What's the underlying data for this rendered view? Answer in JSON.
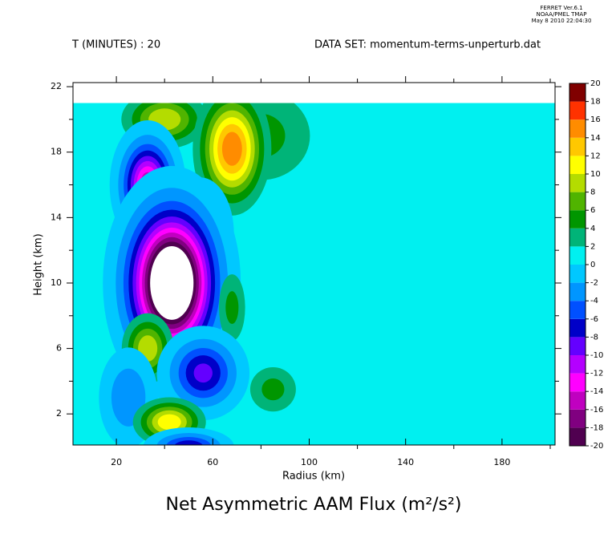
{
  "chart_data": {
    "type": "contour",
    "title": "Net Asymmetric AAM Flux (m²/s²)",
    "header_left": "T (MINUTES) : 20",
    "header_right": "DATA SET: momentum-terms-unperturb.dat",
    "stamp": [
      "FERRET Ver.6.1",
      "NOAA/PMEL TMAP",
      "May  8 2010 22:04:30"
    ],
    "xlabel": "Radius (km)",
    "ylabel": "Height (km)",
    "xlim": [
      2,
      202
    ],
    "ylim": [
      0.1,
      22.25
    ],
    "field_top": 21,
    "xticks": [
      20,
      60,
      100,
      140,
      180
    ],
    "xminor": [
      40,
      80,
      120,
      160,
      200
    ],
    "yticks": [
      2,
      6,
      10,
      14,
      18,
      22
    ],
    "yminor": [
      4,
      8,
      12,
      16,
      20
    ],
    "levels": [
      -20,
      -18,
      -16,
      -14,
      -12,
      -10,
      -8,
      -6,
      -4,
      -2,
      0,
      2,
      4,
      6,
      8,
      10,
      12,
      14,
      16,
      18,
      20
    ],
    "colors": [
      "#500050",
      "#800080",
      "#c000c0",
      "#ff00ff",
      "#b400ff",
      "#6400ff",
      "#0000c8",
      "#0050ff",
      "#0096ff",
      "#00c8ff",
      "#00f0f0",
      "#00b478",
      "#009600",
      "#50b400",
      "#b4dc00",
      "#ffff00",
      "#ffc800",
      "#ff8c00",
      "#ff3200",
      "#800000"
    ],
    "features": [
      {
        "x": 80,
        "y": 19,
        "sx": 15,
        "sy": 2,
        "value": 5
      },
      {
        "x": 40,
        "y": 20,
        "sx": 10,
        "sy": 1,
        "value": 10
      },
      {
        "x": 68,
        "y": 18.2,
        "sx": 8,
        "sy": 2,
        "value": 16
      },
      {
        "x": 33,
        "y": 16,
        "sx": 6,
        "sy": 1.5,
        "value": -16
      },
      {
        "x": 55,
        "y": 13,
        "sx": 6,
        "sy": 1.5,
        "value": -7
      },
      {
        "x": 43,
        "y": 10,
        "sx": 10,
        "sy": 2.5,
        "value": -30
      },
      {
        "x": 68,
        "y": 8.5,
        "sx": 4,
        "sy": 1.5,
        "value": 5
      },
      {
        "x": 33,
        "y": 6,
        "sx": 6,
        "sy": 1.2,
        "value": 10
      },
      {
        "x": 56,
        "y": 4.5,
        "sx": 8,
        "sy": 1.2,
        "value": -9
      },
      {
        "x": 25,
        "y": 3,
        "sx": 6,
        "sy": 1.5,
        "value": -4
      },
      {
        "x": 85,
        "y": 3.5,
        "sx": 7,
        "sy": 1,
        "value": 5
      },
      {
        "x": 42,
        "y": 1.5,
        "sx": 8,
        "sy": 0.8,
        "value": 12
      },
      {
        "x": 50,
        "y": 0,
        "sx": 8,
        "sy": 0.5,
        "value": -8
      }
    ]
  }
}
